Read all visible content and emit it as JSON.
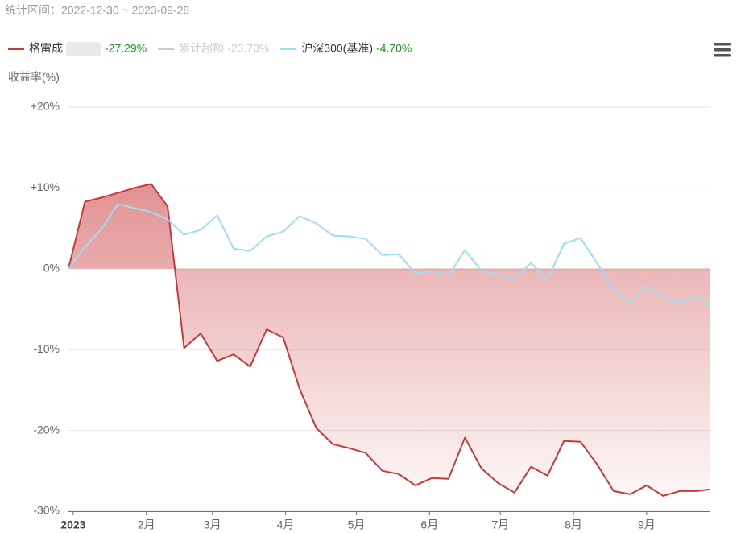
{
  "chart_data": {
    "type": "line",
    "subtitle": "统计区间：2022-12-30 ~ 2023-09-28",
    "y_label": "收益率(%)",
    "x": [
      0,
      7,
      14,
      21,
      28,
      35,
      42,
      49,
      56,
      63,
      70,
      77,
      84,
      91,
      98,
      105,
      112,
      119,
      126,
      133,
      140,
      147,
      154,
      161,
      168,
      175,
      182,
      189,
      196,
      203,
      210,
      217,
      224,
      231,
      238,
      245,
      252,
      259,
      266,
      272
    ],
    "xlim": [
      0,
      272
    ],
    "xticks": [
      {
        "value": 2,
        "label": "2023"
      },
      {
        "value": 33,
        "label": "2月"
      },
      {
        "value": 61,
        "label": "3月"
      },
      {
        "value": 92,
        "label": "4月"
      },
      {
        "value": 122,
        "label": "5月"
      },
      {
        "value": 153,
        "label": "6月"
      },
      {
        "value": 183,
        "label": "7月"
      },
      {
        "value": 214,
        "label": "8月"
      },
      {
        "value": 245,
        "label": "9月"
      }
    ],
    "ylim": [
      -30,
      20
    ],
    "yticks": [
      {
        "value": 20,
        "label": "+20%"
      },
      {
        "value": 10,
        "label": "+10%"
      },
      {
        "value": 0,
        "label": "0%"
      },
      {
        "value": -10,
        "label": "-10%"
      },
      {
        "value": -20,
        "label": "-20%"
      },
      {
        "value": -30,
        "label": "-30%"
      }
    ],
    "grid": true,
    "series": [
      {
        "name": "格雷成",
        "color": "#c9393a",
        "area": true,
        "legend_label": "-27.29%",
        "label_color": "#1a961a",
        "values": [
          0,
          8.3,
          8.8,
          9.4,
          10.0,
          10.5,
          7.7,
          -9.8,
          -8.0,
          -11.4,
          -10.6,
          -12.1,
          -7.5,
          -8.5,
          -14.9,
          -19.7,
          -21.7,
          -22.2,
          -22.8,
          -25.0,
          -25.4,
          -26.8,
          -25.9,
          -26.0,
          -20.9,
          -24.7,
          -26.5,
          -27.7,
          -24.5,
          -25.6,
          -21.3,
          -21.4,
          -24.2,
          -27.5,
          -27.9,
          -26.8,
          -28.1,
          -27.5,
          -27.5,
          -27.29
        ]
      },
      {
        "name": "累计超额",
        "color": "#cccccc",
        "visible": false,
        "legend_label": "-23.70%",
        "label_color": "#cccccc"
      },
      {
        "name": "沪深300(基准)",
        "color": "#9fdcf5",
        "legend_label": "-4.70%",
        "label_color": "#1a961a",
        "values": [
          0,
          2.7,
          4.9,
          8.0,
          7.5,
          7.0,
          6.1,
          4.2,
          4.8,
          6.6,
          2.5,
          2.2,
          4.0,
          4.6,
          6.5,
          5.6,
          4.1,
          4.0,
          3.7,
          1.7,
          1.8,
          -0.6,
          -0.3,
          -0.9,
          2.3,
          -0.3,
          -0.7,
          -1.2,
          0.7,
          -1.3,
          3.1,
          3.8,
          0.7,
          -2.6,
          -4.2,
          -2.1,
          -3.5,
          -4.2,
          -3.4,
          -4.7
        ]
      }
    ]
  }
}
